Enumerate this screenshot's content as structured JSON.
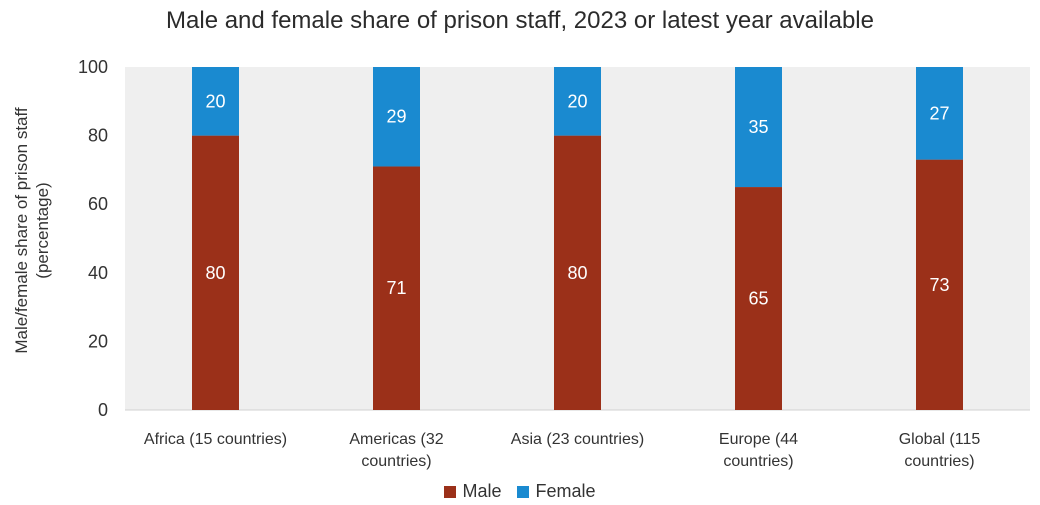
{
  "chart_data": {
    "type": "bar",
    "stacked": true,
    "title": "Male and female share of prison staff, 2023 or latest year available",
    "ylabel": "Male/female share of prison staff (percentage)",
    "ylabel_lines": [
      "Male/female share of prison staff",
      "(percentage)"
    ],
    "xlabel": "",
    "ylim": [
      0,
      100
    ],
    "yticks": [
      0,
      20,
      40,
      60,
      80,
      100
    ],
    "grid": false,
    "legend_position": "bottom",
    "categories": [
      "Africa (15 countries)",
      "Americas (32 countries)",
      "Asia (23 countries)",
      "Europe (44 countries)",
      "Global (115 countries)"
    ],
    "category_label_lines": [
      [
        "Africa (15 countries)"
      ],
      [
        "Americas (32",
        "countries)"
      ],
      [
        "Asia (23 countries)"
      ],
      [
        "Europe (44",
        "countries)"
      ],
      [
        "Global (115",
        "countries)"
      ]
    ],
    "series": [
      {
        "name": "Male",
        "color": "#9b3019",
        "values": [
          80,
          71,
          80,
          65,
          73
        ]
      },
      {
        "name": "Female",
        "color": "#1a8ad0",
        "values": [
          20,
          29,
          20,
          35,
          27
        ]
      }
    ],
    "plot_background": "#efefef"
  }
}
